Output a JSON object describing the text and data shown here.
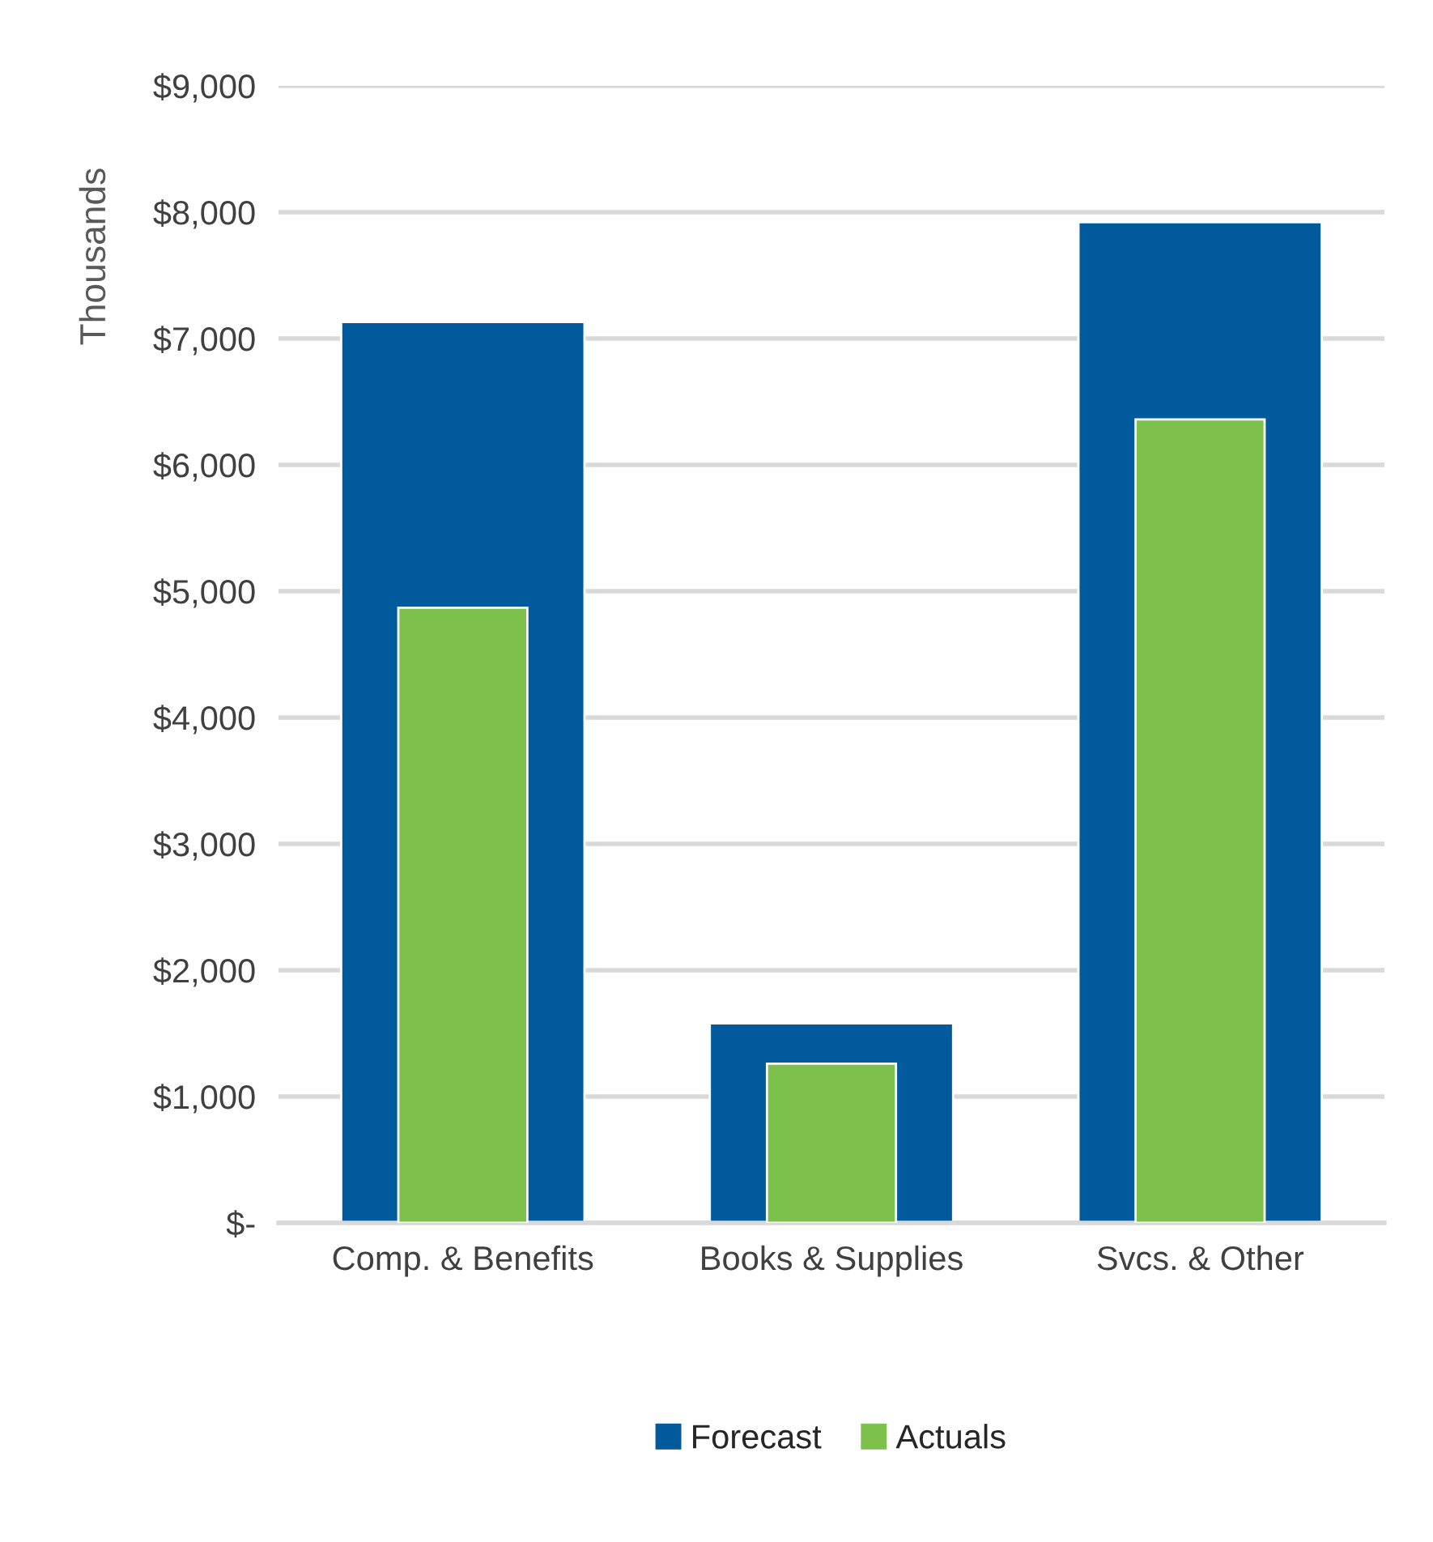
{
  "chart_data": {
    "type": "bar",
    "ylabel": "Thousands",
    "categories": [
      "Comp. & Benefits",
      "Books & Supplies",
      "Svcs. & Other"
    ],
    "series": [
      {
        "name": "Forecast",
        "color": "#005a9c",
        "values": [
          7130,
          1580,
          7920
        ]
      },
      {
        "name": "Actuals",
        "color": "#7dc04b",
        "values": [
          4870,
          1260,
          6360
        ]
      }
    ],
    "ylim": [
      0,
      9000
    ],
    "yticks": [
      {
        "value": 0,
        "label": "$-"
      },
      {
        "value": 1000,
        "label": "$1,000"
      },
      {
        "value": 2000,
        "label": "$2,000"
      },
      {
        "value": 3000,
        "label": "$3,000"
      },
      {
        "value": 4000,
        "label": "$4,000"
      },
      {
        "value": 5000,
        "label": "$5,000"
      },
      {
        "value": 6000,
        "label": "$6,000"
      },
      {
        "value": 7000,
        "label": "$7,000"
      },
      {
        "value": 8000,
        "label": "$8,000"
      },
      {
        "value": 9000,
        "label": "$9,000"
      }
    ],
    "grid": "y",
    "legend": "bottom"
  }
}
